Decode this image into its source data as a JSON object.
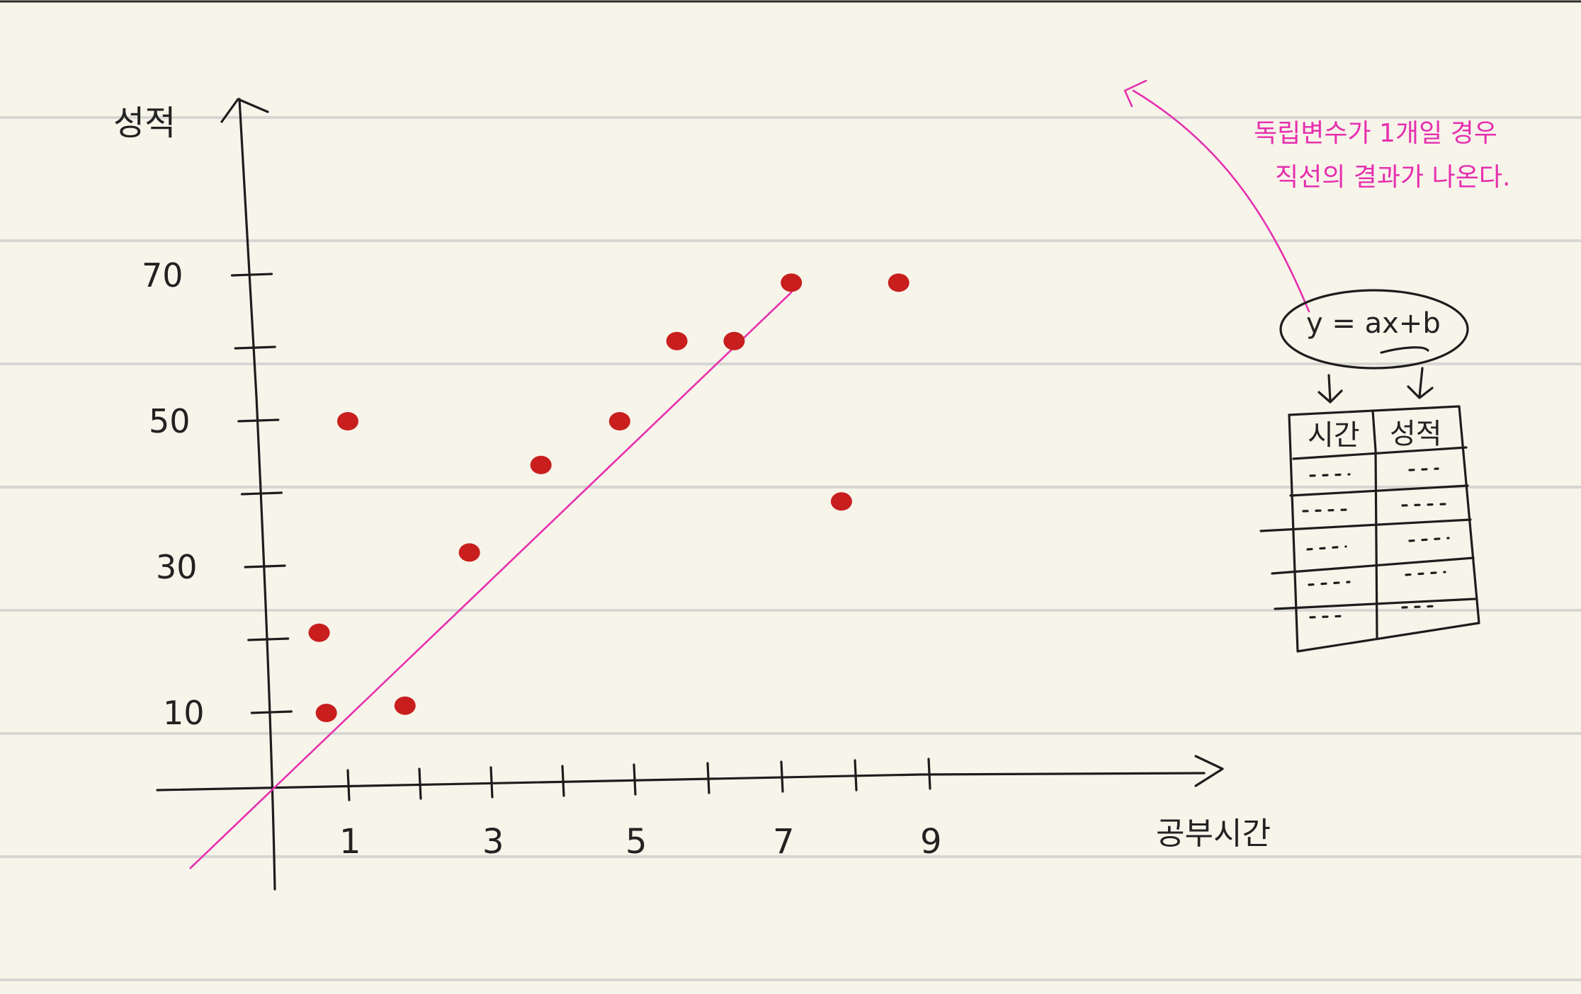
{
  "colors": {
    "paper": "#f7f4ea",
    "rule": "#d6d6d3",
    "ink": "#1d1d1d",
    "point": "#c81e1e",
    "annotation": "#e62fae"
  },
  "chart_data": {
    "type": "scatter",
    "xlabel": "공부시간",
    "ylabel": "성적",
    "x_tick_labels": [
      "1",
      "3",
      "5",
      "7",
      "9"
    ],
    "y_tick_labels": [
      "10",
      "30",
      "50",
      "70"
    ],
    "xlim": [
      0,
      9
    ],
    "ylim": [
      0,
      70
    ],
    "grid": false,
    "points": [
      {
        "x": 0.7,
        "y": 10
      },
      {
        "x": 0.6,
        "y": 21
      },
      {
        "x": 1.0,
        "y": 50
      },
      {
        "x": 1.8,
        "y": 11
      },
      {
        "x": 2.7,
        "y": 32
      },
      {
        "x": 3.7,
        "y": 44
      },
      {
        "x": 4.8,
        "y": 50
      },
      {
        "x": 5.6,
        "y": 61
      },
      {
        "x": 6.4,
        "y": 61
      },
      {
        "x": 7.2,
        "y": 69
      },
      {
        "x": 7.9,
        "y": 39
      },
      {
        "x": 8.7,
        "y": 69
      }
    ],
    "fit_line": {
      "slope": 9.4,
      "intercept": 0
    }
  },
  "annotation": {
    "line1": "독립변수가 1개일 경우",
    "line2": "직선의 결과가 나온다.",
    "formula": "y = ax+b",
    "table": {
      "headers": [
        "시간",
        "성적"
      ]
    }
  }
}
